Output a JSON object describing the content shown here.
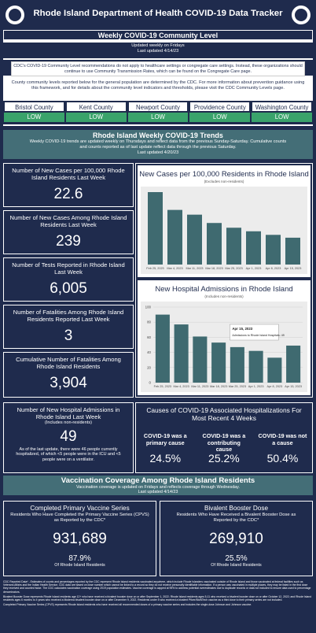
{
  "header": {
    "title": "Rhode Island Department of Health COVID-19 Data Tracker"
  },
  "community": {
    "title": "Weekly COVID-19 Community Level",
    "updated": "Updated weekly on Fridays",
    "last_updated": "Last updated 4/14/23",
    "notice": "CDC's COVID-19 Community Level recommendations do not apply to healthcare settings or congregate care settings. Instead, these organizations should continue to use Community Transmission Rates, which can be found on the Congregate Care page.",
    "info": "County community levels reported below for the general population are determined by the CDC. For more information about prevention guidance using this framework, and for details about the community level indicators and thresholds, please visit the CDC Community Levels page.",
    "counties": [
      {
        "name": "Bristol County",
        "level": "LOW"
      },
      {
        "name": "Kent County",
        "level": "LOW"
      },
      {
        "name": "Newport County",
        "level": "LOW"
      },
      {
        "name": "Providence County",
        "level": "LOW"
      },
      {
        "name": "Washington County",
        "level": "LOW"
      }
    ]
  },
  "trends": {
    "title": "Rhode Island Weekly COVID-19 Trends",
    "subtitle": "Weekly COVID-19 trends are updated weekly on Thursdays and reflect data from the previous Sunday-Saturday. Cumulative counts and counts reported as of last update reflect data through the previous Saturday.",
    "last_updated": "Last updated 4/20/23",
    "kpis": [
      {
        "label": "Number of New Cases per 100,000 Rhode Island Residents Last Week",
        "value": "22.6"
      },
      {
        "label": "Number of New Cases Among Rhode Island Residents Last Week",
        "value": "239"
      },
      {
        "label": "Number of Tests Reported in Rhode Island Last Week",
        "value": "6,005"
      },
      {
        "label": "Number of Fatalities Among Rhode Island Residents Reported Last Week",
        "value": "3"
      },
      {
        "label": "Cumulative Number of Fatalities Among Rhode Island Residents",
        "value": "3,904"
      }
    ],
    "cases_chart": {
      "type": "bar",
      "title": "New Cases per 100,000 Residents in Rhode Island",
      "subtitle": "(Excludes non-residents)",
      "categories": [
        "Feb 25, 2023",
        "Mar 4, 2023",
        "Mar 11, 2023",
        "Mar 18, 2023",
        "Mar 25, 2023",
        "Apr 1, 2023",
        "Apr 8, 2023",
        "Apr 15, 2023"
      ],
      "values": [
        61,
        46,
        42,
        35,
        31,
        28,
        25,
        22.6
      ],
      "color": "#3f6a70"
    },
    "hosp_chart": {
      "type": "bar",
      "title": "New Hospital Admissions in Rhode Island",
      "subtitle": "(Includes non-residents)",
      "categories": [
        "Feb 25, 2023",
        "Mar 4, 2023",
        "Mar 11, 2023",
        "Mar 18, 2023",
        "Mar 25, 2023",
        "Apr 1, 2023",
        "Apr 8, 2023",
        "Apr 15, 2023"
      ],
      "values": [
        90,
        77,
        61,
        53,
        47,
        42,
        33,
        49
      ],
      "color": "#3f6a70",
      "ylim": [
        0,
        100
      ],
      "yticks": [
        0,
        20,
        40,
        60,
        80,
        100
      ],
      "grid": true,
      "tooltip": {
        "date": "Apr 15, 2023",
        "text": "Admissions to Rhode Island Hospitals: 49"
      }
    },
    "admissions": {
      "label": "Number of New Hospital Admissions in Rhode Island Last Week",
      "sub": "(Includes non-residents)",
      "value": "49",
      "note": "As of the last update, there were 46 people currently hospitalized, of which <5 people were in the ICU and <5 people were on a ventilator."
    },
    "causes": {
      "title": "Causes of COVID-19 Associated Hospitalizations For Most Recent 4 Weeks",
      "items": [
        {
          "label": "COVID-19 was a primary cause",
          "value": "24.5%"
        },
        {
          "label": "COVID-19 was a contributing cause",
          "value": "25.2%"
        },
        {
          "label": "COVID-19 was not a cause",
          "value": "50.4%"
        }
      ]
    }
  },
  "vaccination": {
    "title": "Vaccination Coverage Among Rhode Island Residents",
    "subtitle": "Vaccination coverage is updated on Fridays and reflects coverage through Wednesday.",
    "last_updated": "Last updated 4/14/23",
    "cards": [
      {
        "title": "Completed Primary Vaccine Series",
        "label": "Residents Who Have Completed the Primary Vaccine Series (CPVS) as Reported by the CDC*",
        "value": "931,689",
        "percent": "87.9%",
        "percent_label": "Of Rhode Island Residents"
      },
      {
        "title": "Bivalent Booster Dose",
        "label": "Residents Who Have Received a Bivalent Booster Dose as Reported by the CDC*",
        "value": "269,910",
        "percent": "25.5%",
        "percent_label": "Of Rhode Island Residents"
      }
    ]
  },
  "footnotes": [
    "CDC Reported Data* - Estimates of counts and percentages reported by the CDC represent Rhode Island residents vaccinated anywhere, which include Rhode Islanders vaccinated outside of Rhode Island and those vaccinated at federal facilities such as Veterans Affairs and the Indian Health Service. CDC data are based on dose number which cannot be linked to a record so they do not receive personally identifiable information. If a person was vaccinated in multiple places, they may be listed in the first dose they received and counted twice. The CDC calculates vaccination coverage using 2019 population estimates. Vaccine coverage is capped at 95% to address potential overestimates due to duplicate records or data not included to ensure data used to percentage denominators.",
    "Bivalent Booster Dose represents Rhode Island residents age 12+ who have received a bivalent booster dose on or after September 1, 2022; Rhode Island residents ages 5-11 who received a bivalent booster dose on or after October 12, 2022; and Rhode Island residents ages 6 months to 4 years who received a Moderna bivalent booster dose on or after December 9, 2022. Residents under 5 who received a bivalent Pfizer/BioNTech vaccine as a third dose to their primary series are not included.",
    "Completed Primary Vaccine Series (CPVS) represents Rhode Island residents who have received all recommended doses of a primary vaccine series and includes the single-dose Johnson and Johnson vaccine."
  ]
}
